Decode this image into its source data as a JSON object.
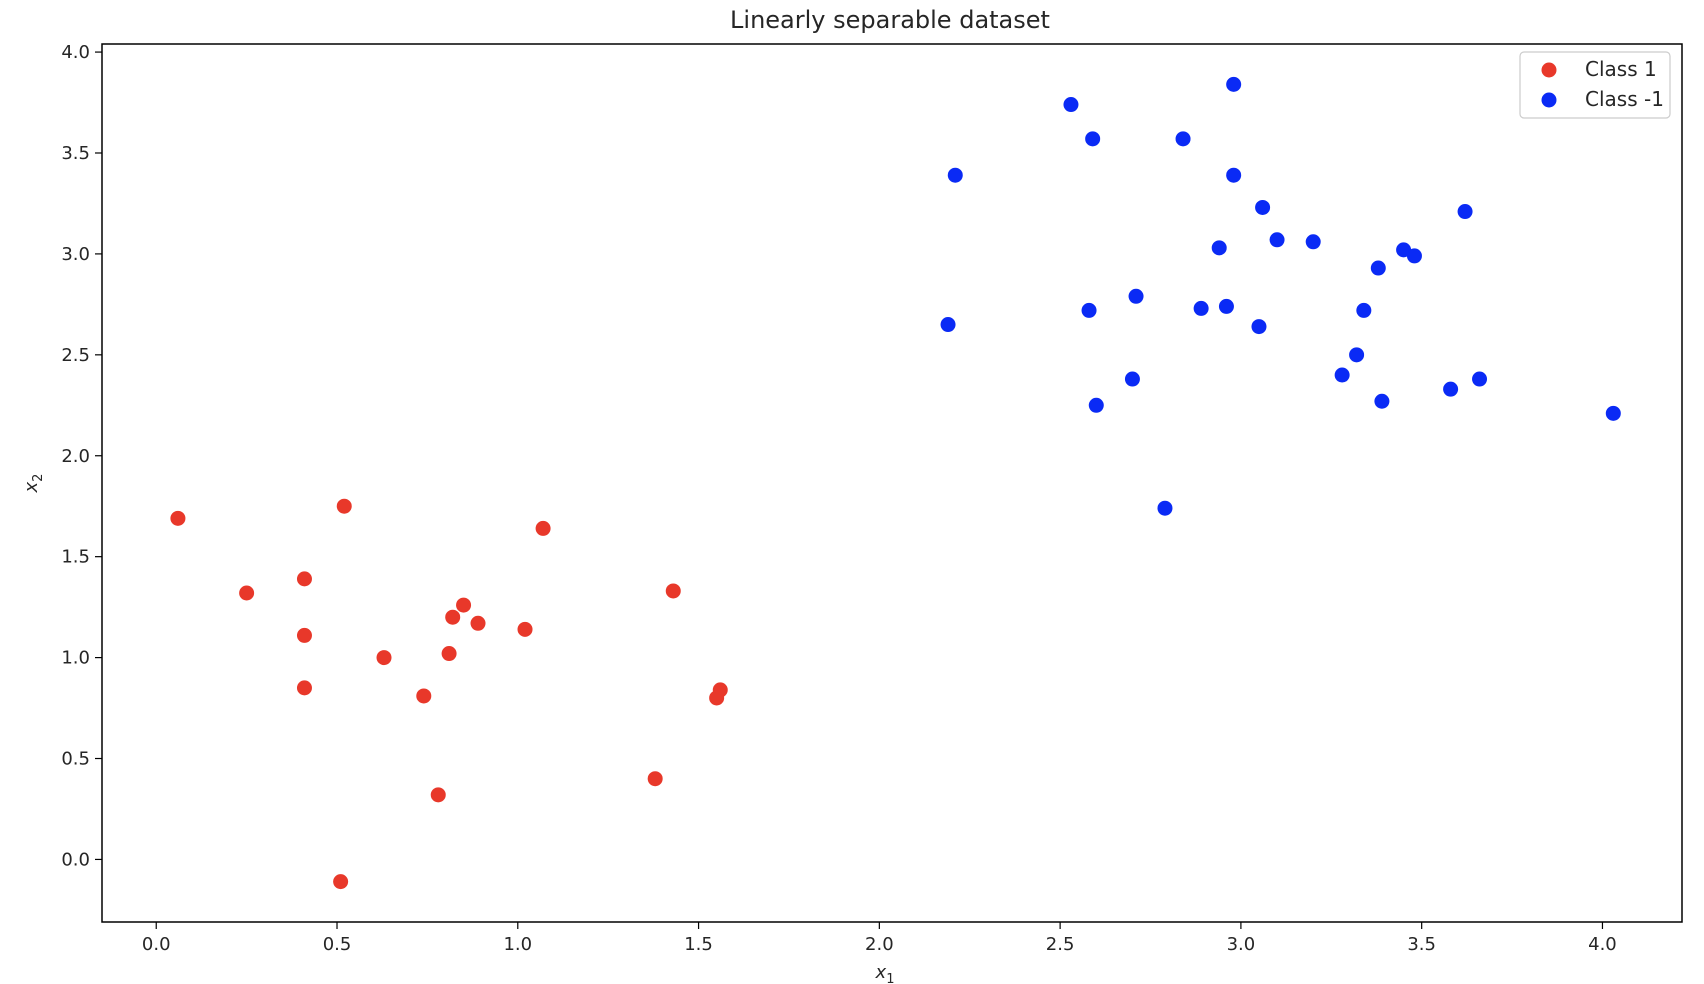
{
  "chart_data": {
    "type": "scatter",
    "title": "Linearly separable dataset",
    "xlabel": "x",
    "xlabel_sub": "1",
    "ylabel": "x",
    "ylabel_sub": "2",
    "xlim": [
      -0.15,
      4.22
    ],
    "ylim": [
      -0.31,
      4.04
    ],
    "xticks": [
      0.0,
      0.5,
      1.0,
      1.5,
      2.0,
      2.5,
      3.0,
      3.5,
      4.0
    ],
    "yticks": [
      0.0,
      0.5,
      1.0,
      1.5,
      2.0,
      2.5,
      3.0,
      3.5,
      4.0
    ],
    "legend_position": "top-right",
    "series": [
      {
        "name": "Class 1",
        "color": "#e8382a",
        "points": [
          [
            0.06,
            1.69
          ],
          [
            0.52,
            1.75
          ],
          [
            1.07,
            1.64
          ],
          [
            0.25,
            1.32
          ],
          [
            0.41,
            1.39
          ],
          [
            1.43,
            1.33
          ],
          [
            0.41,
            1.11
          ],
          [
            0.85,
            1.26
          ],
          [
            0.82,
            1.2
          ],
          [
            0.89,
            1.17
          ],
          [
            1.02,
            1.14
          ],
          [
            0.63,
            1.0
          ],
          [
            0.81,
            1.02
          ],
          [
            0.41,
            0.85
          ],
          [
            0.74,
            0.81
          ],
          [
            1.56,
            0.84
          ],
          [
            1.55,
            0.8
          ],
          [
            1.38,
            0.4
          ],
          [
            0.78,
            0.32
          ],
          [
            0.51,
            -0.11
          ]
        ]
      },
      {
        "name": "Class -1",
        "color": "#0a2af5",
        "points": [
          [
            2.98,
            3.84
          ],
          [
            2.53,
            3.74
          ],
          [
            2.59,
            3.57
          ],
          [
            2.84,
            3.57
          ],
          [
            2.21,
            3.39
          ],
          [
            2.98,
            3.39
          ],
          [
            3.06,
            3.23
          ],
          [
            3.62,
            3.21
          ],
          [
            3.1,
            3.07
          ],
          [
            3.2,
            3.06
          ],
          [
            2.94,
            3.03
          ],
          [
            3.45,
            3.02
          ],
          [
            3.48,
            2.99
          ],
          [
            3.38,
            2.93
          ],
          [
            2.71,
            2.79
          ],
          [
            2.58,
            2.72
          ],
          [
            2.89,
            2.73
          ],
          [
            2.96,
            2.74
          ],
          [
            3.34,
            2.72
          ],
          [
            2.19,
            2.65
          ],
          [
            3.05,
            2.64
          ],
          [
            3.32,
            2.5
          ],
          [
            3.28,
            2.4
          ],
          [
            2.7,
            2.38
          ],
          [
            3.66,
            2.38
          ],
          [
            3.58,
            2.33
          ],
          [
            3.39,
            2.27
          ],
          [
            2.6,
            2.25
          ],
          [
            4.03,
            2.21
          ],
          [
            2.79,
            1.74
          ]
        ]
      }
    ]
  }
}
